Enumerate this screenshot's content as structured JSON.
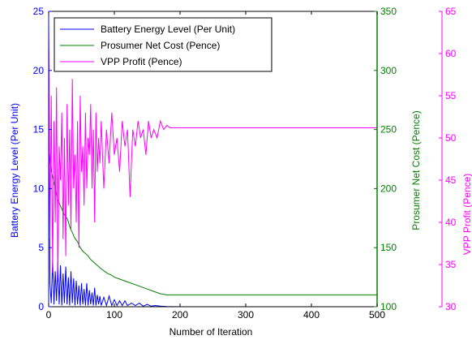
{
  "chart_data": {
    "type": "line",
    "xlabel": "Number of Iteration",
    "xlim": [
      0,
      500
    ],
    "xticks": [
      0,
      100,
      200,
      300,
      400,
      500
    ],
    "axes": {
      "left": {
        "label": "Battery Energy Level (Per Unit)",
        "range": [
          0,
          25
        ],
        "ticks": [
          0,
          5,
          10,
          15,
          20,
          25
        ],
        "color": "#0000ff"
      },
      "right1": {
        "label": "Prosumer Net Cost (Pence)",
        "range": [
          100,
          350
        ],
        "ticks": [
          100,
          150,
          200,
          250,
          300,
          350
        ],
        "color": "#008000"
      },
      "right2": {
        "label": "VPP Profit (Pence)",
        "range": [
          30,
          65
        ],
        "ticks": [
          30,
          35,
          40,
          45,
          50,
          55,
          60,
          65
        ],
        "color": "#ff00ff"
      }
    },
    "legend_position": "top-left",
    "series": [
      {
        "name": "Battery Energy Level (Per Unit)",
        "axis": "left",
        "color": "#0000ff",
        "x": [
          0,
          2,
          4,
          6,
          8,
          10,
          12,
          14,
          16,
          18,
          20,
          22,
          24,
          26,
          28,
          30,
          32,
          34,
          36,
          38,
          40,
          42,
          44,
          46,
          48,
          50,
          52,
          54,
          56,
          58,
          60,
          62,
          64,
          66,
          68,
          70,
          72,
          74,
          76,
          78,
          80,
          84,
          88,
          92,
          96,
          100,
          104,
          108,
          112,
          116,
          120,
          126,
          132,
          138,
          144,
          150,
          156,
          162,
          170,
          180,
          200,
          300,
          400,
          500
        ],
        "y": [
          24,
          2,
          0.3,
          4,
          0.2,
          3,
          0.5,
          3.8,
          0.2,
          3.5,
          0.1,
          2.8,
          0.3,
          3.4,
          0.2,
          2.5,
          0.1,
          3.0,
          0.3,
          2.4,
          0.1,
          2.2,
          0.2,
          1.8,
          0.1,
          2.0,
          0.2,
          1.5,
          0.1,
          2.0,
          0.1,
          1.4,
          0.2,
          1.2,
          0.1,
          1.6,
          0.1,
          1.0,
          0.2,
          0.9,
          0.1,
          0.8,
          0.1,
          0.9,
          0.1,
          0.6,
          0.1,
          0.5,
          0.1,
          0.5,
          0.1,
          0.3,
          0.1,
          0.3,
          0.05,
          0.2,
          0.05,
          0.1,
          0.05,
          0.02,
          0,
          0,
          0,
          0
        ]
      },
      {
        "name": "Prosumer Net Cost (Pence)",
        "axis": "right1",
        "color": "#008000",
        "x": [
          0,
          2,
          4,
          6,
          8,
          10,
          12,
          14,
          16,
          18,
          20,
          22,
          24,
          26,
          28,
          30,
          32,
          34,
          36,
          38,
          40,
          44,
          48,
          52,
          56,
          60,
          64,
          68,
          72,
          76,
          80,
          85,
          90,
          95,
          100,
          110,
          120,
          130,
          140,
          150,
          160,
          170,
          180,
          200,
          300,
          400,
          500
        ],
        "y": [
          240,
          225,
          215,
          210,
          205,
          200,
          195,
          190,
          188,
          185,
          183,
          180,
          178,
          176,
          175,
          172,
          168,
          165,
          163,
          160,
          158,
          155,
          150,
          147,
          145,
          143,
          140,
          138,
          136,
          134,
          132,
          130,
          128,
          127,
          125,
          123,
          121,
          119,
          117,
          115,
          113,
          111,
          110,
          110,
          110,
          110,
          110
        ]
      },
      {
        "name": "VPP Profit (Pence)",
        "axis": "right2",
        "color": "#ff00ff",
        "x": [
          0,
          2,
          4,
          6,
          8,
          10,
          12,
          14,
          16,
          18,
          20,
          22,
          24,
          26,
          28,
          30,
          32,
          34,
          36,
          38,
          40,
          42,
          44,
          46,
          48,
          50,
          52,
          54,
          56,
          58,
          60,
          62,
          64,
          66,
          68,
          70,
          72,
          74,
          76,
          78,
          80,
          84,
          88,
          92,
          96,
          100,
          104,
          108,
          112,
          116,
          120,
          124,
          128,
          132,
          136,
          140,
          144,
          148,
          152,
          156,
          160,
          165,
          170,
          175,
          180,
          185,
          200,
          300,
          400,
          500
        ],
        "y": [
          62,
          38,
          55,
          34,
          52,
          40,
          56,
          33,
          49,
          45,
          53,
          38,
          50,
          36,
          54,
          42,
          51,
          39,
          57,
          44,
          48,
          40,
          52,
          37,
          55,
          46,
          49,
          42,
          53,
          44,
          50,
          48,
          54,
          44,
          51,
          40,
          53,
          46,
          50,
          47,
          52,
          44,
          51,
          47,
          53,
          48,
          50,
          46,
          52,
          49,
          51,
          43,
          51,
          49,
          52,
          50,
          51,
          48,
          52,
          50,
          51,
          50,
          52,
          51,
          51.5,
          51.2,
          51.2,
          51.2,
          51.2,
          51.2
        ]
      }
    ]
  }
}
